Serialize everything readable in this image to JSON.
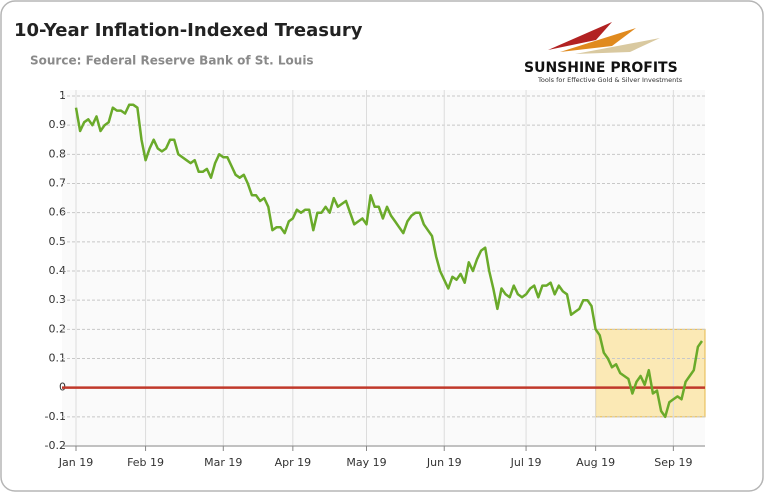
{
  "chart_data": {
    "type": "line",
    "title": "10-Year Inflation-Indexed Treasury",
    "subtitle": "Source: Federal Reserve Bank of St. Louis",
    "logo": {
      "name": "SUNSHINE PROFITS",
      "tagline": "Tools for Effective Gold & Silver Investments"
    },
    "categories": [
      "Jan 19",
      null,
      null,
      null,
      null,
      null,
      null,
      null,
      null,
      null,
      null,
      null,
      null,
      null,
      null,
      null,
      null,
      "Feb 19",
      null,
      null,
      null,
      null,
      null,
      null,
      null,
      null,
      null,
      null,
      null,
      null,
      null,
      null,
      null,
      null,
      null,
      null,
      "Mar 19",
      null,
      null,
      null,
      null,
      null,
      null,
      null,
      null,
      null,
      null,
      null,
      null,
      null,
      null,
      null,
      null,
      "Apr 19",
      null,
      null,
      null,
      null,
      null,
      null,
      null,
      null,
      null,
      null,
      null,
      null,
      null,
      null,
      null,
      null,
      null,
      "May 19",
      null,
      null,
      null,
      null,
      null,
      null,
      null,
      null,
      null,
      null,
      null,
      null,
      null,
      null,
      null,
      null,
      null,
      null,
      "Jun 19",
      null,
      null,
      null,
      null,
      null,
      null,
      null,
      null,
      null,
      null,
      null,
      null,
      null,
      null,
      null,
      null,
      null,
      null,
      null,
      "Jul 19",
      null,
      null,
      null,
      null,
      null,
      null,
      null,
      null,
      null,
      null,
      null,
      null,
      null,
      null,
      null,
      null,
      "Aug 19",
      null,
      null,
      null,
      null,
      null,
      null,
      null,
      null,
      null,
      null,
      null,
      null,
      null,
      null,
      null,
      null,
      null,
      null,
      "Sep 19",
      null,
      null,
      null,
      null,
      null,
      null,
      null
    ],
    "series": [
      {
        "color": "#6aaa2a",
        "values": [
          0.96,
          0.88,
          0.91,
          0.92,
          0.9,
          0.93,
          0.88,
          0.9,
          0.91,
          0.96,
          0.95,
          0.95,
          0.94,
          0.97,
          0.97,
          0.96,
          0.85,
          0.78,
          0.82,
          0.85,
          0.82,
          0.81,
          0.82,
          0.85,
          0.85,
          0.8,
          0.79,
          0.78,
          0.77,
          0.78,
          0.74,
          0.74,
          0.75,
          0.72,
          0.77,
          0.8,
          0.79,
          0.79,
          0.76,
          0.73,
          0.72,
          0.73,
          0.7,
          0.66,
          0.66,
          0.64,
          0.65,
          0.62,
          0.54,
          0.55,
          0.55,
          0.53,
          0.57,
          0.58,
          0.61,
          0.6,
          0.61,
          0.61,
          0.54,
          0.6,
          0.6,
          0.62,
          0.6,
          0.65,
          0.62,
          0.63,
          0.64,
          0.6,
          0.56,
          0.57,
          0.58,
          0.56,
          0.66,
          0.62,
          0.62,
          0.58,
          0.62,
          0.59,
          0.57,
          0.55,
          0.53,
          0.57,
          0.59,
          0.6,
          0.6,
          0.56,
          0.54,
          0.52,
          0.45,
          0.4,
          0.37,
          0.34,
          0.38,
          0.37,
          0.39,
          0.36,
          0.43,
          0.4,
          0.44,
          0.47,
          0.48,
          0.4,
          0.34,
          0.27,
          0.34,
          0.32,
          0.31,
          0.35,
          0.32,
          0.31,
          0.32,
          0.34,
          0.35,
          0.31,
          0.35,
          0.35,
          0.36,
          0.32,
          0.35,
          0.33,
          0.32,
          0.25,
          0.26,
          0.27,
          0.3,
          0.3,
          0.28,
          0.2,
          0.18,
          0.12,
          0.1,
          0.07,
          0.08,
          0.05,
          0.04,
          0.03,
          -0.02,
          0.02,
          0.04,
          0.01,
          0.06,
          -0.02,
          -0.01,
          -0.08,
          -0.1,
          -0.05,
          -0.04,
          -0.03,
          -0.04,
          0.02,
          0.04,
          0.06,
          0.14,
          0.16
        ]
      }
    ],
    "ylim": [
      -0.2,
      1
    ],
    "yticks": [
      1,
      0.9,
      0.8,
      0.7,
      0.6,
      0.5,
      0.4,
      0.3,
      0.2,
      0.1,
      0,
      -0.1,
      -0.2
    ],
    "grid": true,
    "reference_line": {
      "value": 0,
      "color": "#c0392b"
    },
    "highlight": {
      "from": "Aug 19",
      "ylim": [
        -0.1,
        0.2
      ],
      "color": "#fbe9b5"
    }
  }
}
